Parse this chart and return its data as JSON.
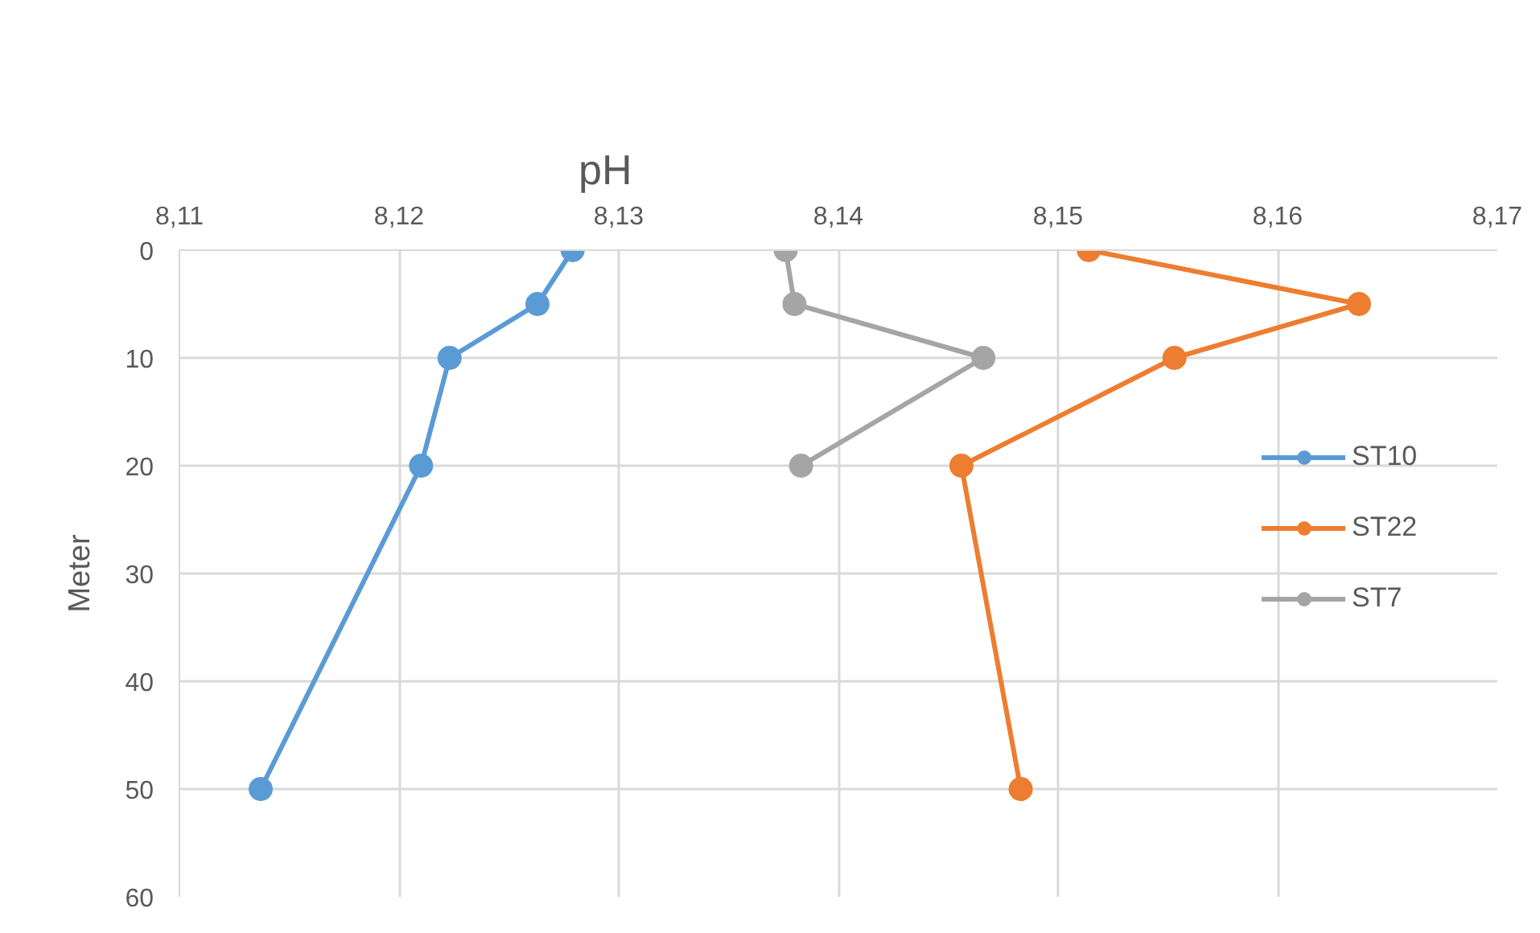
{
  "chart_data": {
    "type": "line",
    "title": "pH",
    "ylabel": "Meter",
    "xlim": [
      8.11,
      8.17
    ],
    "xticks": [
      {
        "value": 8.11,
        "label": "8,11"
      },
      {
        "value": 8.12,
        "label": "8,12"
      },
      {
        "value": 8.13,
        "label": "8,13"
      },
      {
        "value": 8.14,
        "label": "8,14"
      },
      {
        "value": 8.15,
        "label": "8,15"
      },
      {
        "value": 8.16,
        "label": "8,16"
      },
      {
        "value": 8.17,
        "label": "8,17"
      }
    ],
    "ylim": [
      60,
      0
    ],
    "yticks": [
      0,
      10,
      20,
      30,
      40,
      50,
      60
    ],
    "series": [
      {
        "name": "ST10",
        "color": "#5b9bd5",
        "x": [
          8.1279,
          8.1263,
          8.1223,
          8.121,
          8.1137
        ],
        "values": [
          0,
          5,
          10,
          20,
          50
        ]
      },
      {
        "name": "ST22",
        "color": "#ed7d31",
        "x": [
          8.1514,
          8.1637,
          8.1553,
          8.1456,
          8.1483
        ],
        "values": [
          0,
          5,
          10,
          20,
          50
        ]
      },
      {
        "name": "ST7",
        "color": "#a5a5a5",
        "x": [
          8.1376,
          8.138,
          8.1466,
          8.1383
        ],
        "values": [
          0,
          5,
          10,
          20
        ]
      }
    ],
    "grid": true,
    "legend": "right",
    "marker": "circle",
    "line_style": "solid"
  }
}
